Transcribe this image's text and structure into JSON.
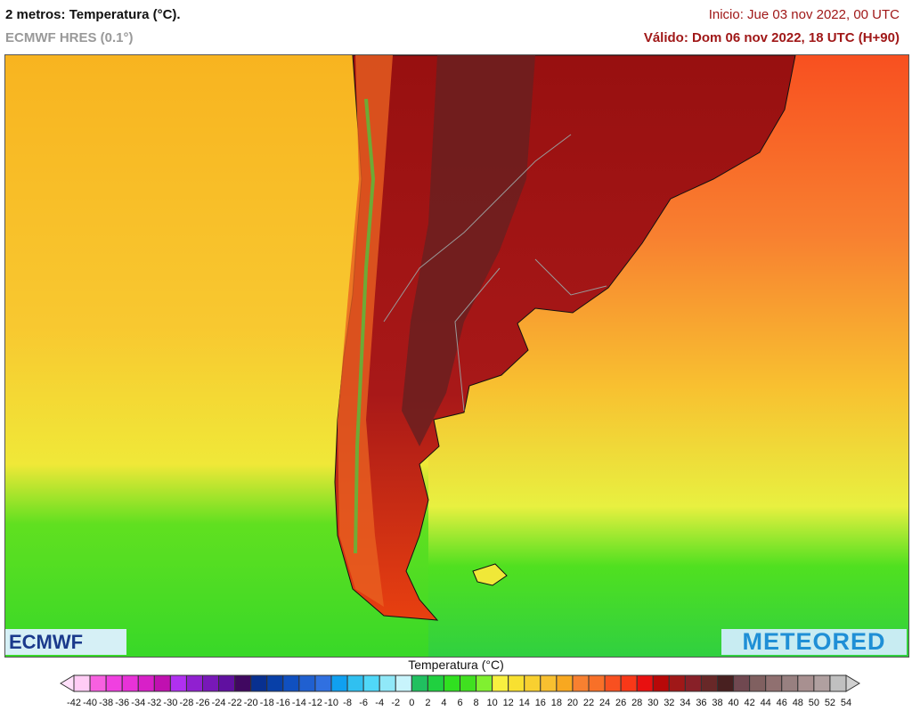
{
  "header": {
    "title": "2 metros: Temperatura (°C).",
    "model": "ECMWF HRES (0.1°)",
    "init": "Inicio: Jue 03 nov 2022, 00 UTC",
    "valid": "Válido: Dom 06 nov 2022, 18 UTC (H+90)"
  },
  "logos": {
    "left": "ECMWF",
    "right": "METEORED"
  },
  "legend": {
    "title": "Temperatura (°C)",
    "ticks": [
      -42,
      -40,
      -38,
      -36,
      -34,
      -32,
      -30,
      -28,
      -26,
      -24,
      -22,
      -20,
      -18,
      -16,
      -14,
      -12,
      -10,
      -8,
      -6,
      -4,
      -2,
      0,
      2,
      4,
      6,
      8,
      10,
      12,
      14,
      16,
      18,
      20,
      22,
      24,
      26,
      28,
      30,
      32,
      34,
      36,
      38,
      40,
      42,
      44,
      46,
      48,
      50,
      52,
      54
    ],
    "colors": [
      "#ffccf5",
      "#f760e0",
      "#f040e0",
      "#e832d8",
      "#d820c8",
      "#c010b0",
      "#b030f0",
      "#9020d0",
      "#7818b8",
      "#6010a0",
      "#400860",
      "#083090",
      "#0840a8",
      "#1050c0",
      "#2060d0",
      "#3070e0",
      "#10a0f0",
      "#30c0f0",
      "#50d8f8",
      "#90e8f8",
      "#c8f4fc",
      "#20c060",
      "#20d040",
      "#30e020",
      "#40e020",
      "#80f030",
      "#f8f040",
      "#f8e030",
      "#f8d030",
      "#f8c030",
      "#f8a820",
      "#f88030",
      "#f87028",
      "#f85020",
      "#f83818",
      "#e81010",
      "#b80808",
      "#a01818",
      "#882028",
      "#682828",
      "#482020",
      "#704850",
      "#806060",
      "#907070",
      "#988080",
      "#a89090",
      "#b0a0a0",
      "#c0c0c0"
    ],
    "under_color": "#ffe0fa",
    "over_color": "#d0d0d0"
  }
}
